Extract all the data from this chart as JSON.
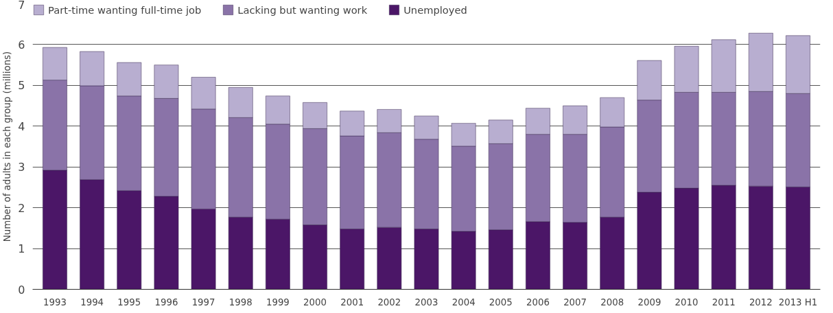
{
  "chart_data": {
    "type": "bar",
    "stacked": true,
    "ylabel": "Number of adults in each group\n(millions)",
    "categories": [
      "1993",
      "1994",
      "1995",
      "1996",
      "1997",
      "1998",
      "1999",
      "2000",
      "2001",
      "2002",
      "2003",
      "2004",
      "2005",
      "2006",
      "2007",
      "2008",
      "2009",
      "2010",
      "2011",
      "2012",
      "2013\nH1"
    ],
    "series": [
      {
        "name": "Unemployed",
        "color": "#4b1667",
        "values": [
          2.92,
          2.69,
          2.42,
          2.28,
          1.97,
          1.77,
          1.72,
          1.58,
          1.48,
          1.52,
          1.48,
          1.42,
          1.46,
          1.66,
          1.64,
          1.77,
          2.38,
          2.48,
          2.55,
          2.53,
          2.51
        ]
      },
      {
        "name": "Lacking but wanting work",
        "color": "#8a73a8",
        "values": [
          2.21,
          2.3,
          2.32,
          2.4,
          2.45,
          2.44,
          2.33,
          2.36,
          2.28,
          2.32,
          2.2,
          2.09,
          2.11,
          2.14,
          2.16,
          2.21,
          2.26,
          2.35,
          2.28,
          2.32,
          2.29
        ]
      },
      {
        "name": "Part-time wanting full-time job",
        "color": "#b8aed0",
        "values": [
          0.8,
          0.84,
          0.82,
          0.82,
          0.78,
          0.74,
          0.69,
          0.64,
          0.61,
          0.57,
          0.57,
          0.56,
          0.58,
          0.64,
          0.7,
          0.72,
          0.97,
          1.13,
          1.29,
          1.43,
          1.42
        ]
      }
    ],
    "ylim": [
      0,
      7
    ],
    "yticks": [
      0,
      1,
      2,
      3,
      4,
      5,
      6,
      7
    ],
    "grid": "y",
    "legend": "top left"
  }
}
